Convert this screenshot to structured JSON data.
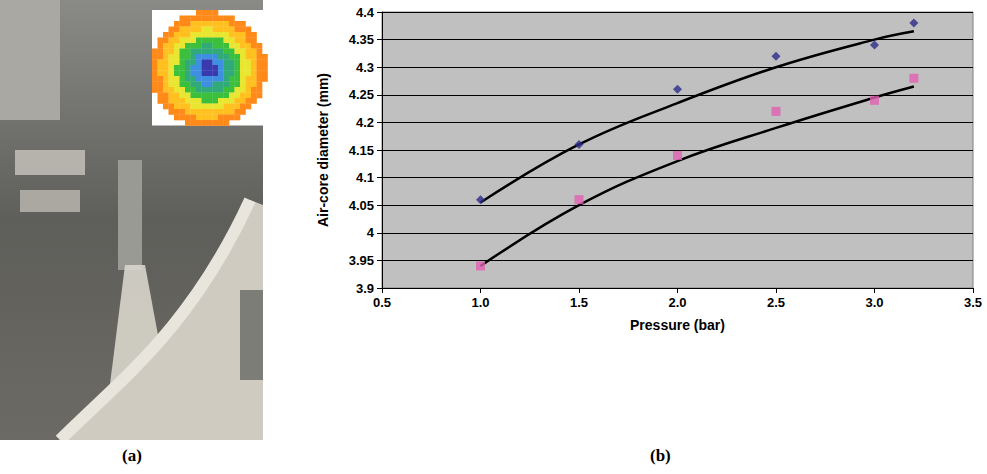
{
  "panel_labels": [
    "(a)",
    "(b)"
  ],
  "chart_data": {
    "type": "scatter",
    "x_label": "Pressure (bar)",
    "y_label": "Air-core diameter (mm)",
    "x": [
      1.0,
      1.5,
      2.0,
      2.5,
      3.0,
      3.2
    ],
    "series": [
      {
        "type": "line",
        "color": "#000000",
        "line_style": "solid",
        "marker": "none",
        "values": [
          4.055,
          4.16,
          4.235,
          4.3,
          4.35,
          4.365
        ]
      },
      {
        "type": "line",
        "color": "#000000",
        "line_style": "solid",
        "marker": "none",
        "values": [
          3.94,
          4.05,
          4.13,
          4.19,
          4.245,
          4.265
        ]
      },
      {
        "type": "scatter",
        "color": "#2b2b8a",
        "marker": "diamond",
        "values": [
          4.06,
          4.16,
          4.26,
          4.32,
          4.34,
          4.38
        ]
      },
      {
        "type": "scatter",
        "color": "#e060b0",
        "marker": "square",
        "values": [
          3.94,
          4.06,
          4.14,
          4.22,
          4.24,
          4.28
        ]
      }
    ],
    "xlim": [
      0.5,
      3.5
    ],
    "xticks": [
      0.5,
      {
        "value": 1.0,
        "label": "1.0"
      },
      1.5,
      {
        "value": 2.0,
        "label": "2.0"
      },
      2.5,
      {
        "value": 3.0,
        "label": "3.0"
      },
      3.5
    ],
    "ylim": [
      3.9,
      4.4
    ],
    "yticks": [
      3.9,
      3.95,
      4,
      4.05,
      4.1,
      4.15,
      4.2,
      4.25,
      4.3,
      4.35,
      4.4
    ],
    "grid": "y"
  }
}
